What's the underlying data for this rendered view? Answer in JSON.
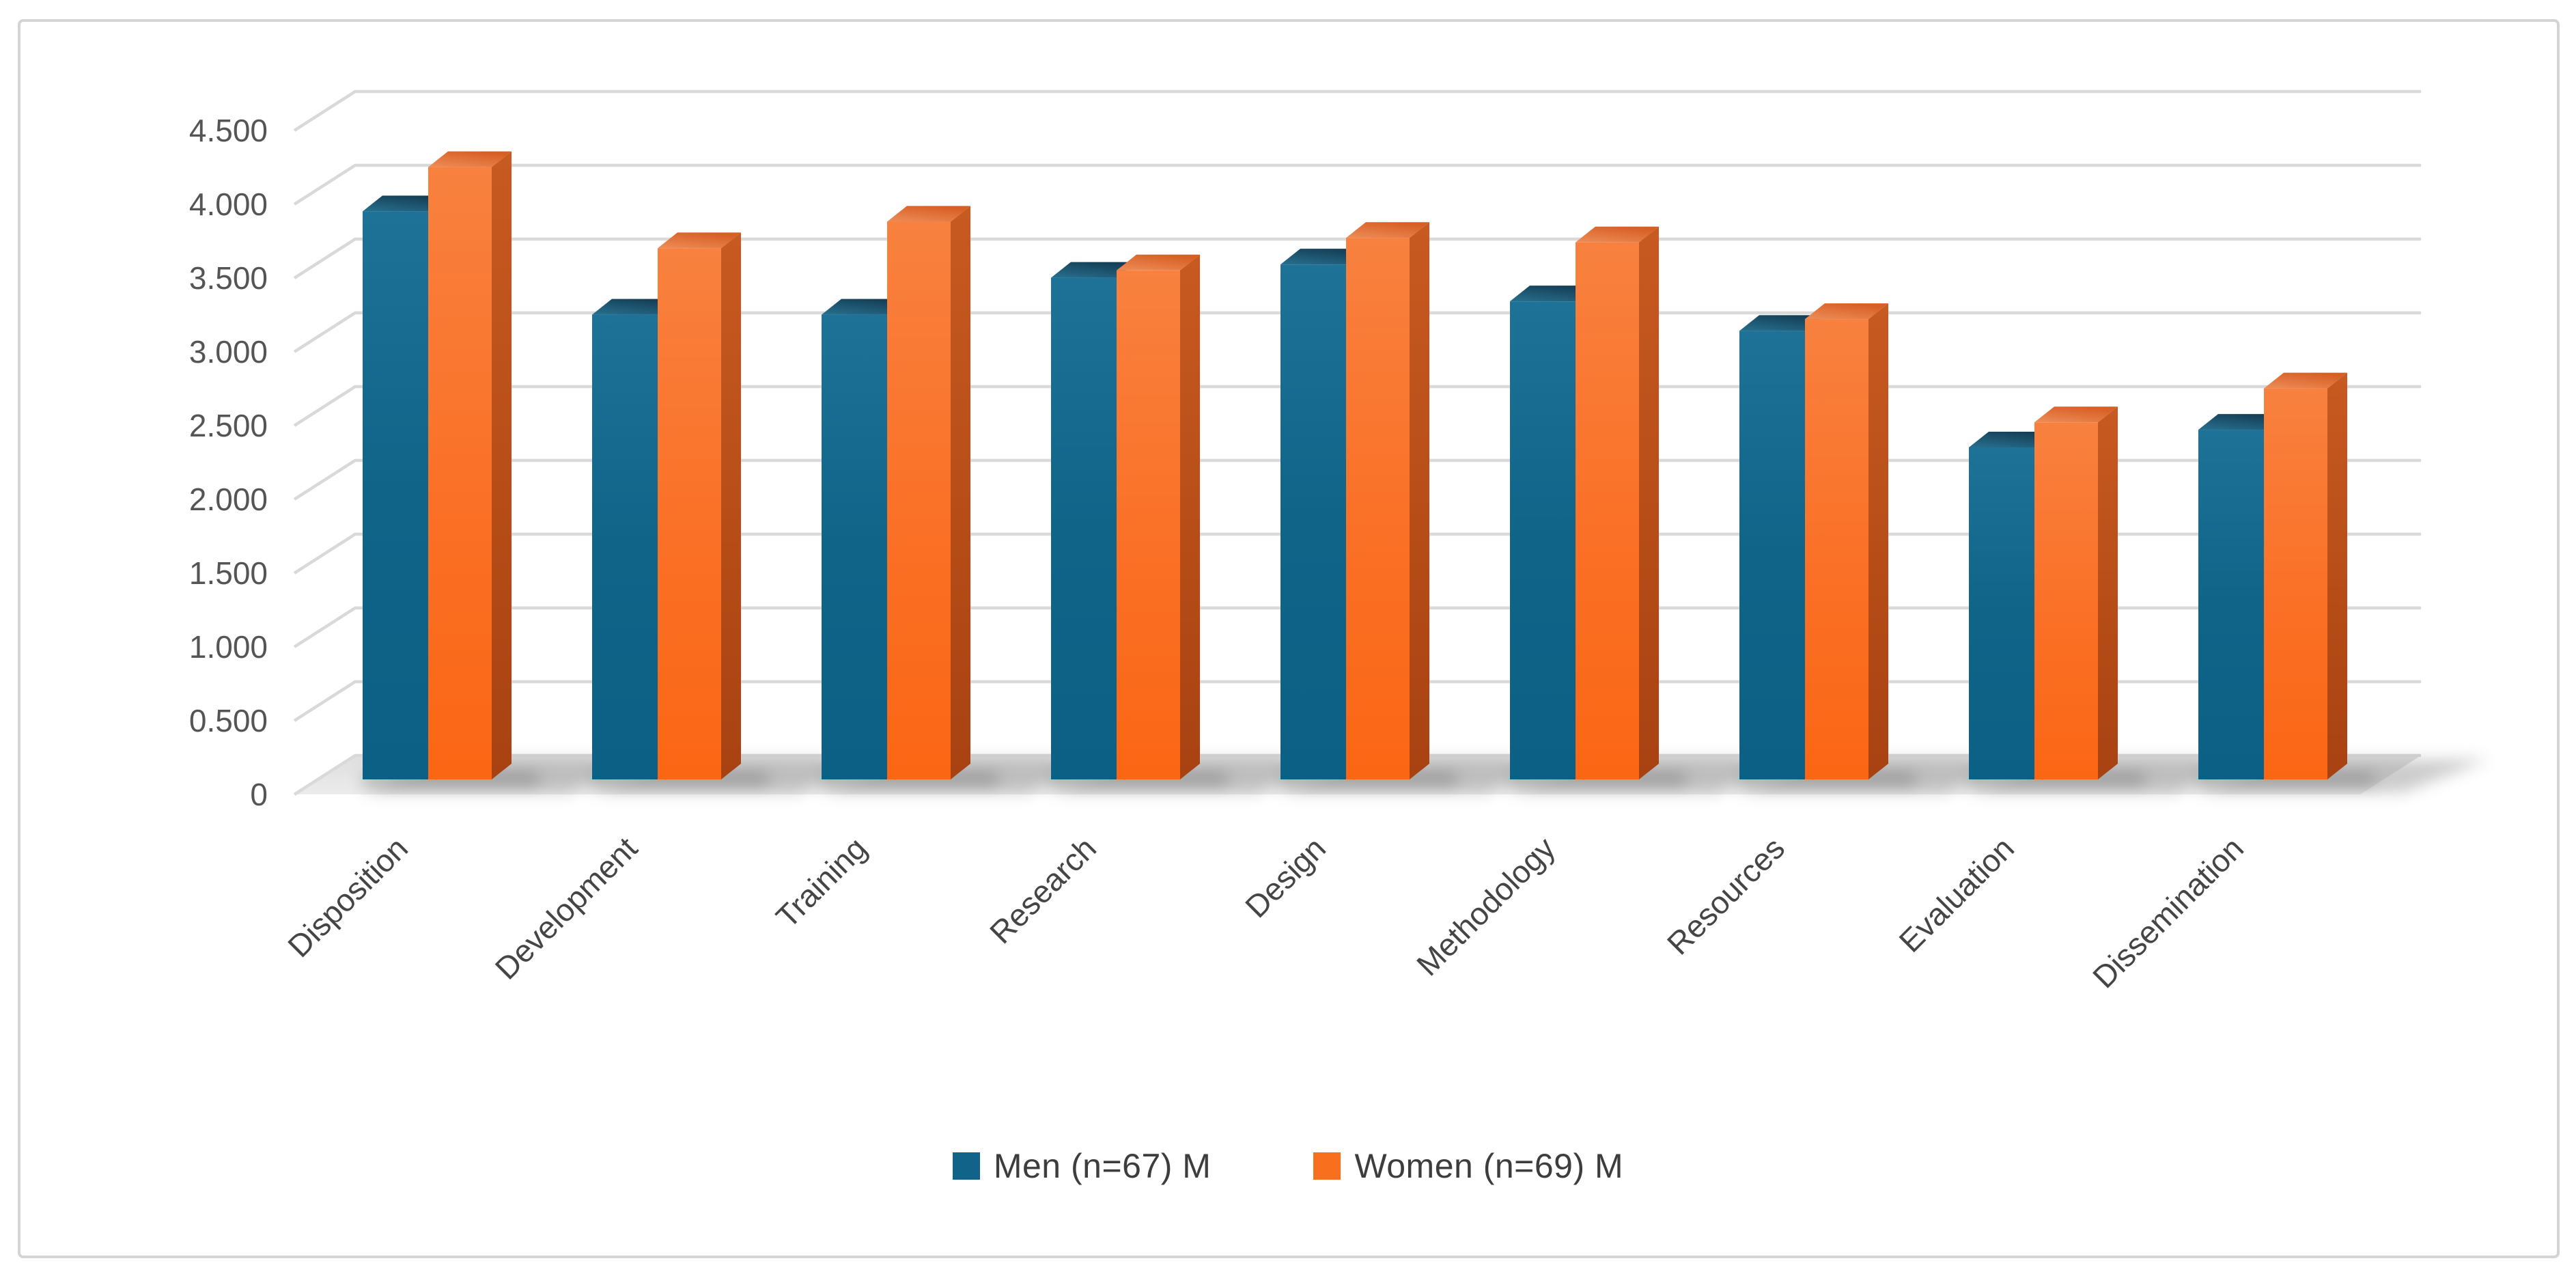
{
  "figure": {
    "background_color": "#FFFFFF",
    "border_color": "#D4D4D4"
  },
  "chart_data": {
    "type": "bar",
    "projection": "3d-clustered-column",
    "title": "",
    "categories": [
      "Disposition",
      "Development",
      "Training",
      "Research",
      "Design",
      "Methodology",
      "Resources",
      "Evaluation",
      "Dissemination"
    ],
    "series": [
      {
        "name": "Men (n=67) M",
        "color": "#12638A",
        "values": [
          3.85,
          3.15,
          3.15,
          3.4,
          3.49,
          3.24,
          3.04,
          2.25,
          2.37
        ]
      },
      {
        "name": "Women (n=69) M",
        "color": "#F8701E",
        "values": [
          4.15,
          3.6,
          3.78,
          3.45,
          3.67,
          3.64,
          3.12,
          2.42,
          2.65
        ]
      }
    ],
    "y_axis": {
      "min": 0,
      "max": 4.5,
      "step": 0.5,
      "tick_labels": [
        "0",
        "0.500",
        "1.000",
        "1.500",
        "2.000",
        "2.500",
        "3.000",
        "3.500",
        "4.000",
        "4.500"
      ]
    },
    "x_axis": {
      "label_rotation_deg": -45
    },
    "grid": true,
    "gridline_color": "#D9D9D9",
    "legend_position": "bottom-center"
  }
}
